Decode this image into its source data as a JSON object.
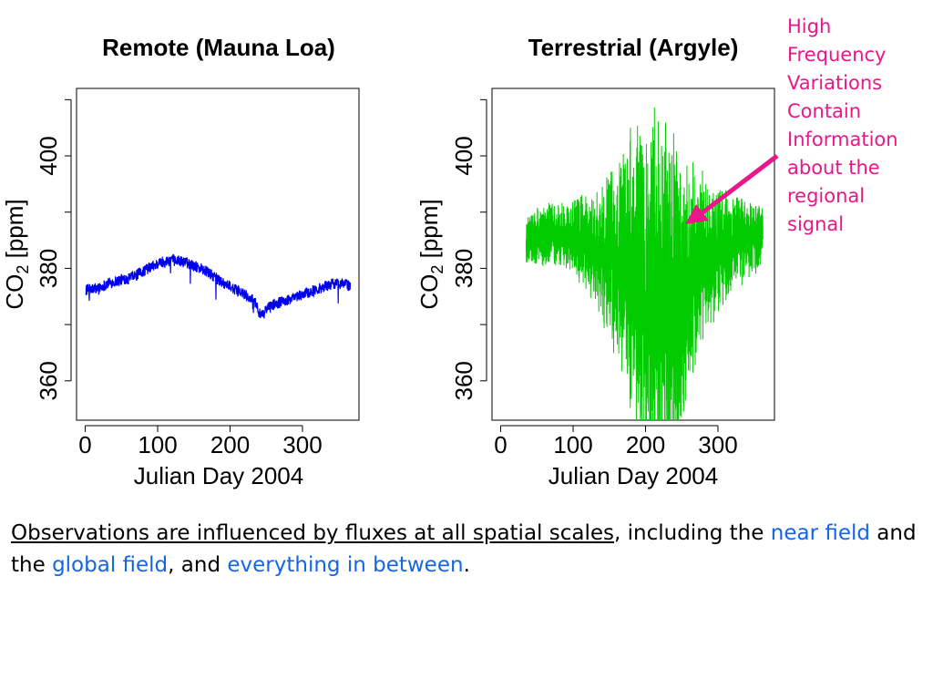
{
  "chart_data": [
    {
      "type": "line",
      "title": "Remote (Mauna Loa)",
      "xlabel": "Julian Day 2004",
      "ylabel_main": "CO",
      "ylabel_sub": "2",
      "ylabel_unit": " [ppm]",
      "xlim": [
        -12,
        378
      ],
      "ylim": [
        353,
        412
      ],
      "xticks": [
        0,
        100,
        200,
        300
      ],
      "yticks": [
        360,
        380,
        400
      ],
      "color": "#0000ee",
      "series": [
        {
          "x": [
            1,
            10,
            20,
            30,
            40,
            50,
            60,
            70,
            80,
            90,
            100,
            110,
            120,
            130,
            140,
            150,
            160,
            170,
            180,
            190,
            200,
            210,
            220,
            230,
            236,
            240,
            245,
            250,
            255,
            260,
            270,
            280,
            290,
            300,
            310,
            320,
            330,
            340,
            350,
            360,
            366
          ],
          "y": [
            376.2,
            376.3,
            376.5,
            377.3,
            377.6,
            378.0,
            378.3,
            378.7,
            379.5,
            380.2,
            380.8,
            381.2,
            381.4,
            381.3,
            381.0,
            380.5,
            380.0,
            379.2,
            378.3,
            377.5,
            376.8,
            376.0,
            375.3,
            374.5,
            373.8,
            372.0,
            371.5,
            372.8,
            373.2,
            373.6,
            374.0,
            374.3,
            374.8,
            375.3,
            375.8,
            376.3,
            376.8,
            377.2,
            377.4,
            377.2,
            376.8
          ],
          "noise": 1.0
        }
      ]
    },
    {
      "type": "line",
      "title": "Terrestrial (Argyle)",
      "xlabel": "Julian Day 2004",
      "ylabel_main": "CO",
      "ylabel_sub": "2",
      "ylabel_unit": " [ppm]",
      "xlim": [
        -12,
        378
      ],
      "ylim": [
        353,
        412
      ],
      "xticks": [
        0,
        100,
        200,
        300
      ],
      "yticks": [
        360,
        380,
        400
      ],
      "color": "#00cc00",
      "series": [
        {
          "x": [
            35,
            50,
            70,
            90,
            110,
            130,
            150,
            170,
            190,
            210,
            230,
            240,
            250,
            260,
            270,
            290,
            310,
            330,
            350,
            362
          ],
          "y": [
            385.0,
            385.5,
            386.0,
            385.8,
            385.0,
            383.5,
            382.0,
            380.0,
            377.5,
            375.0,
            372.0,
            374.0,
            376.5,
            378.5,
            380.5,
            382.5,
            384.0,
            385.0,
            385.5,
            386.0
          ],
          "spread": [
            2.5,
            3.0,
            3.5,
            3.5,
            4.5,
            6.0,
            9.0,
            13.0,
            17.0,
            19.0,
            20.0,
            18.0,
            15.0,
            12.0,
            10.0,
            8.0,
            6.0,
            5.0,
            4.0,
            3.0
          ]
        }
      ]
    }
  ],
  "annotation": {
    "lines": [
      "High",
      "Frequency",
      "Variations",
      "Contain",
      "Information",
      "about the",
      "regional",
      "signal"
    ],
    "color": "#e8178a"
  },
  "caption": {
    "underlined": "Observations are influenced by fluxes at all spatial scales",
    "t1": ", including the ",
    "near_field": "near field",
    "t2": " and the ",
    "global_field": "global field",
    "t3": ", and ",
    "everything": "everything in between",
    "t4": ".",
    "highlight_color": "#1466e6"
  }
}
